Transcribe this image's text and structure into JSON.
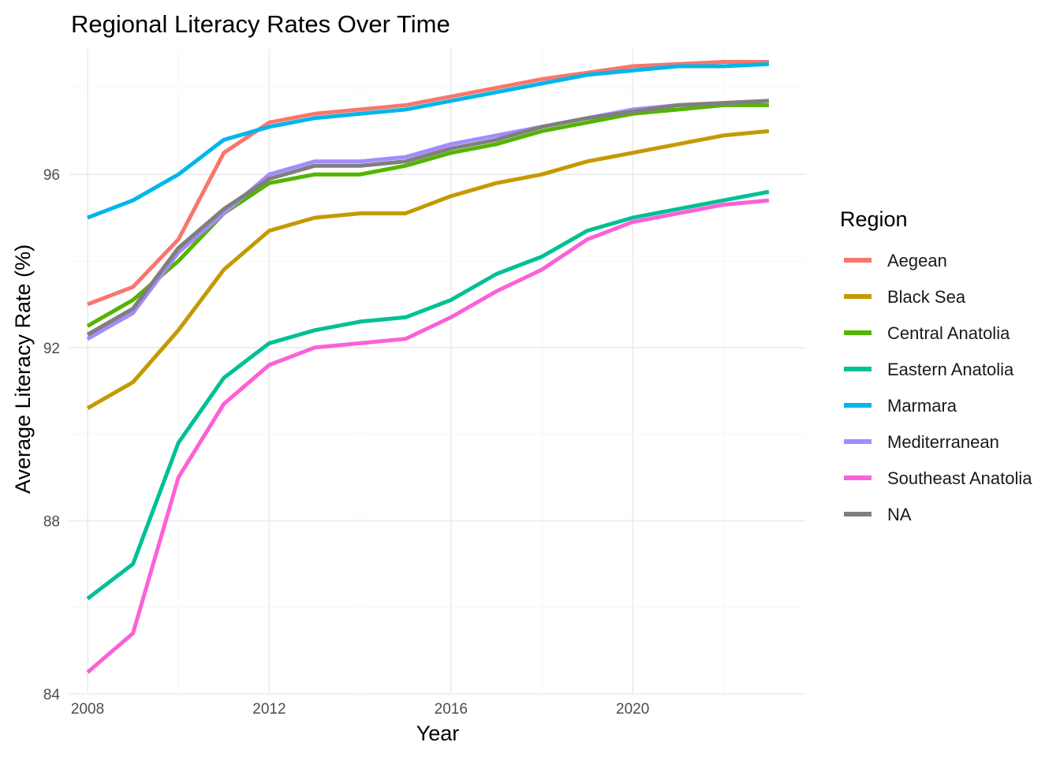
{
  "chart_data": {
    "type": "line",
    "title": "Regional Literacy Rates Over Time",
    "xlabel": "Year",
    "ylabel": "Average Literacy Rate (%)",
    "xlim": [
      2007.6,
      2023.8
    ],
    "ylim": [
      84,
      98.9
    ],
    "x_ticks": [
      2008,
      2012,
      2016,
      2020
    ],
    "y_ticks": [
      84,
      88,
      92,
      96
    ],
    "grid": true,
    "legend": {
      "title": "Region",
      "position": "right"
    },
    "x": [
      2008,
      2009,
      2010,
      2011,
      2012,
      2013,
      2014,
      2015,
      2016,
      2017,
      2018,
      2019,
      2020,
      2021,
      2022,
      2023
    ],
    "series": [
      {
        "name": "Aegean",
        "color": "#F8766D",
        "values": [
          93.0,
          93.4,
          94.5,
          96.5,
          97.2,
          97.4,
          97.5,
          97.6,
          97.8,
          98.0,
          98.2,
          98.35,
          98.5,
          98.55,
          98.6,
          98.6
        ]
      },
      {
        "name": "Black Sea",
        "color": "#C49A00",
        "values": [
          90.6,
          91.2,
          92.4,
          93.8,
          94.7,
          95.0,
          95.1,
          95.1,
          95.5,
          95.8,
          96.0,
          96.3,
          96.5,
          96.7,
          96.9,
          97.0
        ]
      },
      {
        "name": "Central Anatolia",
        "color": "#53B400",
        "values": [
          92.5,
          93.1,
          94.0,
          95.1,
          95.8,
          96.0,
          96.0,
          96.2,
          96.5,
          96.7,
          97.0,
          97.2,
          97.4,
          97.5,
          97.6,
          97.6
        ]
      },
      {
        "name": "Eastern Anatolia",
        "color": "#00C094",
        "values": [
          86.2,
          87.0,
          89.8,
          91.3,
          92.1,
          92.4,
          92.6,
          92.7,
          93.1,
          93.7,
          94.1,
          94.7,
          95.0,
          95.2,
          95.4,
          95.6
        ]
      },
      {
        "name": "Marmara",
        "color": "#00B6EB",
        "values": [
          95.0,
          95.4,
          96.0,
          96.8,
          97.1,
          97.3,
          97.4,
          97.5,
          97.7,
          97.9,
          98.1,
          98.3,
          98.4,
          98.5,
          98.5,
          98.55
        ]
      },
      {
        "name": "Mediterranean",
        "color": "#A58AFF",
        "values": [
          92.2,
          92.8,
          94.2,
          95.1,
          96.0,
          96.3,
          96.3,
          96.4,
          96.7,
          96.9,
          97.1,
          97.3,
          97.5,
          97.6,
          97.65,
          97.7
        ]
      },
      {
        "name": "Southeast Anatolia",
        "color": "#FB61D7",
        "values": [
          84.5,
          85.4,
          89.0,
          90.7,
          91.6,
          92.0,
          92.1,
          92.2,
          92.7,
          93.3,
          93.8,
          94.5,
          94.9,
          95.1,
          95.3,
          95.4
        ]
      },
      {
        "name": "NA",
        "color": "#7F7F7F",
        "values": [
          92.3,
          92.9,
          94.3,
          95.2,
          95.9,
          96.2,
          96.2,
          96.3,
          96.6,
          96.8,
          97.1,
          97.3,
          97.45,
          97.6,
          97.65,
          97.7
        ]
      }
    ]
  }
}
